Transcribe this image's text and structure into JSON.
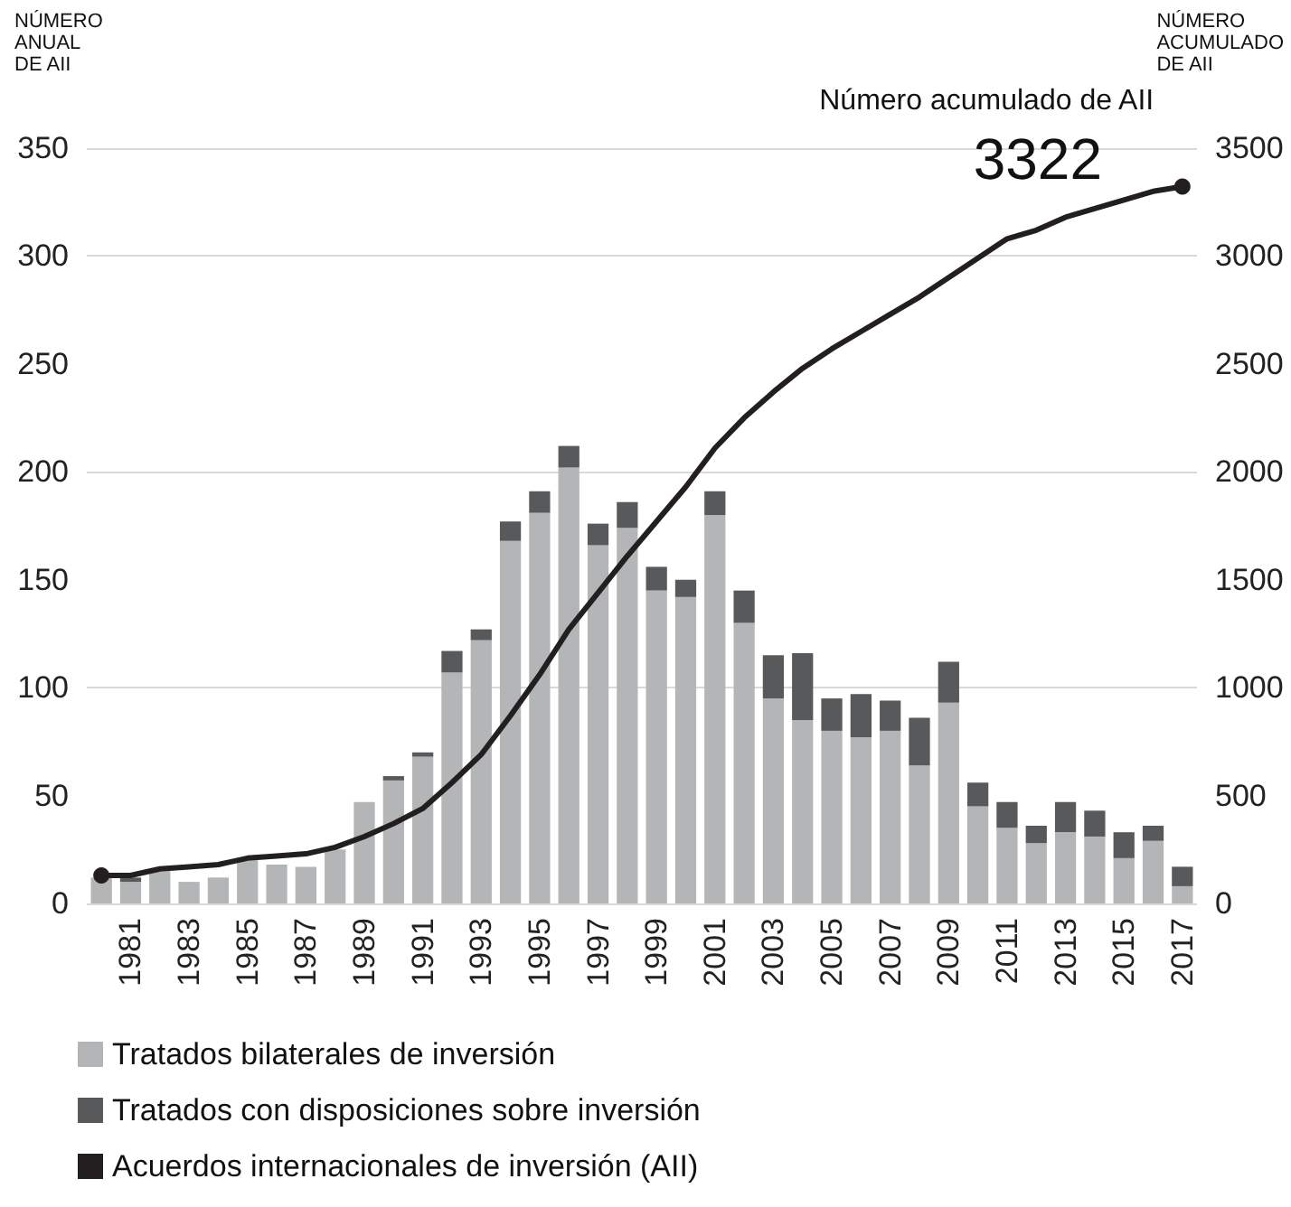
{
  "chart_data": {
    "type": "bar",
    "stacked": true,
    "categories": [
      null,
      "1981",
      null,
      "1983",
      null,
      "1985",
      null,
      "1987",
      null,
      "1989",
      null,
      "1991",
      null,
      "1993",
      null,
      "1995",
      null,
      "1997",
      null,
      "1999",
      null,
      "2001",
      null,
      "2003",
      null,
      "2005",
      null,
      "2007",
      null,
      "2009",
      null,
      "2011",
      null,
      "2013",
      null,
      "2015",
      null,
      "2017"
    ],
    "ylabel": "NÚMERO\nANUAL\nDE AII",
    "y2label": "NÚMERO\nACUMULADO\nDE AII",
    "series": [
      {
        "name": "Tratados bilaterales de inversión",
        "color": "#b3b5b6",
        "values": [
          12,
          10,
          15,
          10,
          12,
          20,
          18,
          17,
          25,
          47,
          57,
          68,
          107,
          122,
          168,
          181,
          202,
          166,
          174,
          145,
          142,
          180,
          130,
          95,
          85,
          80,
          77,
          80,
          64,
          93,
          45,
          35,
          28,
          33,
          31,
          21,
          29,
          8
        ]
      },
      {
        "name": "Tratados con disposiciones sobre inversión",
        "color": "#58595b",
        "values": [
          0,
          2,
          0,
          0,
          0,
          null,
          0,
          0,
          null,
          0,
          2,
          2,
          10,
          5,
          9,
          10,
          10,
          10,
          12,
          11,
          8,
          11,
          15,
          20,
          31,
          15,
          20,
          14,
          22,
          19,
          11,
          12,
          8,
          14,
          12,
          12,
          7,
          9
        ]
      },
      {
        "name": "Acuerdos internacionales de inversión (AII)",
        "type": "line",
        "axis": "y2",
        "color": "#231f20",
        "values": [
          130,
          130,
          160,
          170,
          180,
          210,
          220,
          230,
          260,
          310,
          370,
          440,
          560,
          690,
          870,
          1060,
          1270,
          1440,
          1610,
          1770,
          1930,
          2110,
          2250,
          2370,
          2480,
          2570,
          2650,
          2730,
          2810,
          2900,
          2990,
          3080,
          3120,
          3180,
          3220,
          3260,
          3300,
          3322
        ],
        "value_labels": [
          null,
          null,
          null,
          null,
          null,
          null,
          null,
          null,
          null,
          null,
          null,
          null,
          null,
          null,
          null,
          null,
          null,
          null,
          null,
          null,
          null,
          null,
          null,
          null,
          null,
          null,
          null,
          null,
          null,
          null,
          null,
          null,
          null,
          null,
          null,
          null,
          null,
          "3322"
        ]
      }
    ],
    "ylim": [
      0,
      350
    ],
    "yticks": [
      0,
      50,
      100,
      150,
      200,
      250,
      300,
      350
    ],
    "y2lim": [
      0,
      3500
    ],
    "y2ticks": [
      0,
      500,
      1000,
      1500,
      2000,
      2500,
      3000,
      3500
    ],
    "annotations": [
      "Número acumulado de AII"
    ],
    "grid": "y",
    "legend": "bottom"
  }
}
